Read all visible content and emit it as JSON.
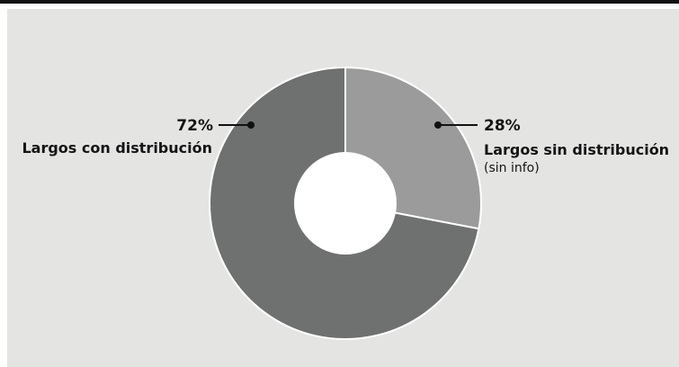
{
  "chart_data": {
    "type": "pie",
    "donut": true,
    "slices": [
      {
        "label": "Largos sin distribución",
        "sublabel": "(sin info)",
        "value": 28,
        "value_label": "28%",
        "color": "#9b9b9b"
      },
      {
        "label": "Largos con distribución",
        "sublabel": "",
        "value": 72,
        "value_label": "72%",
        "color": "#6f7070"
      }
    ],
    "start": "top",
    "direction": "clockwise"
  },
  "colors": {
    "background": "#e4e5e3",
    "top_rule": "#111111",
    "leader": "#111111",
    "hole": "#ffffff"
  }
}
